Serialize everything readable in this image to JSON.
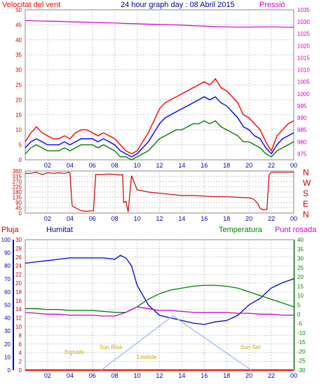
{
  "chart_data": [
    {
      "type": "line",
      "panel": "wind-pressure",
      "title": "24 hour graph day : 08 Abril 2015",
      "left_label": "Velocitat del vent",
      "right_label": "Pressió",
      "x_ticks": [
        "02",
        "04",
        "06",
        "08",
        "10",
        "12",
        "14",
        "16",
        "18",
        "20",
        "22",
        "00"
      ],
      "xlim": [
        0,
        24
      ],
      "ylim": [
        0,
        50
      ],
      "y_ticks": [
        0,
        5,
        10,
        15,
        20,
        25,
        30,
        35,
        40,
        45,
        50
      ],
      "y2lim": [
        972.5,
        1035
      ],
      "y2_ticks": [
        975,
        980,
        985,
        990,
        995,
        1000,
        1005,
        1010,
        1015,
        1020,
        1025,
        1030,
        1035
      ],
      "series": [
        {
          "key": "gust",
          "color": "#ff0000",
          "x": [
            0,
            0.5,
            1,
            1.5,
            2,
            2.5,
            3,
            3.5,
            4,
            4.5,
            5,
            5.5,
            6,
            6.5,
            7,
            7.5,
            8,
            8.5,
            9,
            9.5,
            10,
            10.5,
            11,
            11.5,
            12,
            12.5,
            13,
            13.5,
            14,
            14.5,
            15,
            15.5,
            16,
            16.5,
            17,
            17.5,
            18,
            18.5,
            19,
            19.5,
            20,
            20.5,
            21,
            21.5,
            22,
            22.5,
            23,
            23.5,
            24
          ],
          "y": [
            6,
            9,
            11,
            9,
            8,
            7,
            7,
            8,
            7,
            9,
            10,
            10,
            9,
            8,
            9,
            8,
            7,
            5,
            3,
            2,
            3,
            6,
            9,
            13,
            17,
            19,
            20,
            21,
            22,
            23,
            24,
            25,
            26,
            25,
            27,
            24,
            23,
            21,
            19,
            15,
            14,
            12,
            10,
            6,
            3,
            8,
            10,
            12,
            13
          ]
        },
        {
          "key": "speed",
          "color": "#0000ff",
          "x": [
            0,
            0.5,
            1,
            1.5,
            2,
            2.5,
            3,
            3.5,
            4,
            4.5,
            5,
            5.5,
            6,
            6.5,
            7,
            7.5,
            8,
            8.5,
            9,
            9.5,
            10,
            10.5,
            11,
            11.5,
            12,
            12.5,
            13,
            13.5,
            14,
            14.5,
            15,
            15.5,
            16,
            16.5,
            17,
            17.5,
            18,
            18.5,
            19,
            19.5,
            20,
            20.5,
            21,
            21.5,
            22,
            22.5,
            23,
            23.5,
            24
          ],
          "y": [
            4,
            6,
            7,
            6,
            5,
            5,
            5,
            6,
            5,
            6,
            7,
            7,
            7,
            6,
            7,
            6,
            5,
            3,
            2,
            1,
            2,
            4,
            6,
            9,
            12,
            14,
            15,
            16,
            17,
            18,
            19,
            20,
            21,
            20,
            21,
            19,
            18,
            16,
            14,
            11,
            10,
            8,
            7,
            4,
            2,
            5,
            7,
            8,
            9
          ]
        },
        {
          "key": "avg",
          "color": "#008000",
          "x": [
            0,
            0.5,
            1,
            1.5,
            2,
            2.5,
            3,
            3.5,
            4,
            4.5,
            5,
            5.5,
            6,
            6.5,
            7,
            7.5,
            8,
            8.5,
            9,
            9.5,
            10,
            10.5,
            11,
            11.5,
            12,
            12.5,
            13,
            13.5,
            14,
            14.5,
            15,
            15.5,
            16,
            16.5,
            17,
            17.5,
            18,
            18.5,
            19,
            19.5,
            20,
            20.5,
            21,
            21.5,
            22,
            22.5,
            23,
            23.5,
            24
          ],
          "y": [
            2,
            4,
            5,
            4,
            3,
            3,
            3,
            4,
            3,
            4,
            5,
            5,
            5,
            4,
            5,
            4,
            3,
            1,
            1,
            0,
            1,
            2,
            3,
            5,
            7,
            8,
            9,
            10,
            10,
            11,
            12,
            12,
            13,
            12,
            13,
            11,
            10,
            9,
            8,
            6,
            6,
            5,
            4,
            2,
            1,
            3,
            4,
            5,
            6
          ]
        },
        {
          "key": "pressure",
          "color": "#cc00cc",
          "axis": "right",
          "x": [
            0,
            1,
            2,
            3,
            4,
            5,
            6,
            7,
            8,
            9,
            10,
            11,
            12,
            13,
            14,
            15,
            16,
            17,
            18,
            19,
            20,
            21,
            22,
            23,
            24
          ],
          "y": [
            1030.5,
            1030.4,
            1030.3,
            1030.2,
            1030.0,
            1029.9,
            1029.8,
            1029.6,
            1029.5,
            1029.3,
            1029.2,
            1029.0,
            1028.9,
            1028.8,
            1028.6,
            1028.4,
            1028.2,
            1028.0,
            1027.9,
            1027.8,
            1027.8,
            1027.9,
            1027.9,
            1027.8,
            1027.7
          ]
        }
      ]
    },
    {
      "type": "line",
      "panel": "wind-direction",
      "x_ticks": [
        "02",
        "04",
        "06",
        "08",
        "10",
        "12",
        "14",
        "16",
        "18",
        "20",
        "22",
        "00"
      ],
      "xlim": [
        0,
        24
      ],
      "ylim": [
        0,
        360
      ],
      "y_ticks": [
        0,
        45,
        90,
        135,
        180,
        225,
        270,
        315,
        360
      ],
      "compass": [
        "N",
        "W",
        "S",
        "E",
        "N"
      ],
      "series": [
        {
          "key": "direction",
          "color": "#cc0000",
          "x": [
            0,
            0.5,
            1,
            1.5,
            2,
            2.5,
            3,
            3.5,
            3.9,
            4.0,
            4.2,
            5,
            5.5,
            6,
            6.1,
            6.3,
            7,
            7.5,
            8,
            8.5,
            8.7,
            8.8,
            9,
            9.2,
            9.5,
            10,
            10.5,
            11,
            12,
            13,
            14,
            15,
            16,
            17,
            18,
            19,
            20,
            20.4,
            20.8,
            21,
            21.2,
            21.6,
            21.8,
            22,
            24
          ],
          "y": [
            340,
            340,
            350,
            330,
            345,
            340,
            345,
            340,
            350,
            340,
            60,
            20,
            15,
            20,
            20,
            330,
            330,
            335,
            330,
            325,
            330,
            90,
            100,
            10,
            320,
            200,
            190,
            180,
            170,
            160,
            150,
            150,
            145,
            140,
            140,
            135,
            130,
            120,
            80,
            40,
            30,
            30,
            330,
            350,
            350
          ]
        }
      ]
    },
    {
      "type": "line",
      "panel": "rain-humidity-temperature",
      "legend": [
        "Pluja",
        "Humitat",
        "Temperatura",
        "Punt rosada"
      ],
      "x_ticks": [
        "02",
        "04",
        "06",
        "08",
        "10",
        "12",
        "14",
        "16",
        "18",
        "20",
        "22",
        "00"
      ],
      "xlim": [
        0,
        24
      ],
      "rain_axis": {
        "lim": [
          0,
          30
        ],
        "ticks": [
          0,
          2,
          4,
          6,
          8,
          10,
          12,
          14,
          16,
          18,
          20,
          22,
          24,
          26,
          28,
          30
        ]
      },
      "humidity_axis": {
        "lim": [
          0,
          100
        ],
        "ticks": [
          0,
          10,
          20,
          30,
          40,
          50,
          60,
          70,
          80,
          90,
          100
        ]
      },
      "temperature_axis": {
        "lim": [
          -30,
          40
        ],
        "ticks": [
          -30,
          -25,
          -20,
          -15,
          -10,
          -5,
          0,
          5,
          10,
          15,
          20,
          25,
          30,
          35,
          40
        ]
      },
      "annotations": [
        "Sun Rise",
        "Sun Set",
        "Biglvide",
        "Lowtide"
      ],
      "series": [
        {
          "key": "humidity",
          "color": "#0000cc",
          "axis": "humidity",
          "x": [
            0,
            1,
            2,
            3,
            4,
            5,
            6,
            7,
            8,
            8.5,
            9,
            9.5,
            10,
            11,
            12,
            13,
            14,
            15,
            16,
            17,
            18,
            19,
            20,
            21,
            22,
            23,
            24
          ],
          "y": [
            82,
            83,
            84,
            85,
            86,
            86,
            86,
            86,
            85,
            88,
            86,
            80,
            65,
            50,
            42,
            40,
            38,
            36,
            35,
            37,
            38,
            42,
            50,
            55,
            63,
            67,
            70
          ]
        },
        {
          "key": "temperature",
          "color": "#008000",
          "axis": "temperature",
          "x": [
            0,
            1,
            2,
            3,
            4,
            5,
            6,
            7,
            8,
            9,
            10,
            11,
            12,
            13,
            14,
            15,
            16,
            17,
            18,
            19,
            20,
            21,
            22,
            23,
            24
          ],
          "y": [
            3,
            3,
            2.5,
            2.5,
            2,
            2,
            2,
            1.5,
            1,
            1,
            4,
            8,
            11,
            13,
            14,
            15,
            15.5,
            15.5,
            15,
            14,
            12,
            10,
            8,
            6,
            4
          ]
        },
        {
          "key": "dewpoint",
          "color": "#cc00cc",
          "axis": "temperature",
          "x": [
            0,
            1,
            2,
            3,
            4,
            5,
            6,
            7,
            8,
            9,
            10,
            11,
            12,
            13,
            14,
            15,
            16,
            17,
            18,
            19,
            20,
            21,
            22,
            23,
            24
          ],
          "y": [
            1,
            0.5,
            0,
            0,
            -0.5,
            -0.5,
            -0.5,
            -1,
            -1,
            1,
            4,
            3,
            2,
            2,
            1.5,
            1,
            1,
            1,
            1,
            0.5,
            0.5,
            0,
            0,
            -0.5,
            -0.5
          ]
        },
        {
          "key": "rain",
          "color": "#ff0000",
          "axis": "rain",
          "x": [
            0,
            24
          ],
          "y": [
            0,
            0
          ]
        },
        {
          "key": "solar",
          "color": "#99bbee",
          "axis": "rain",
          "x": [
            6.8,
            13.2,
            20.2
          ],
          "y": [
            0,
            12.5,
            0
          ]
        }
      ]
    }
  ]
}
